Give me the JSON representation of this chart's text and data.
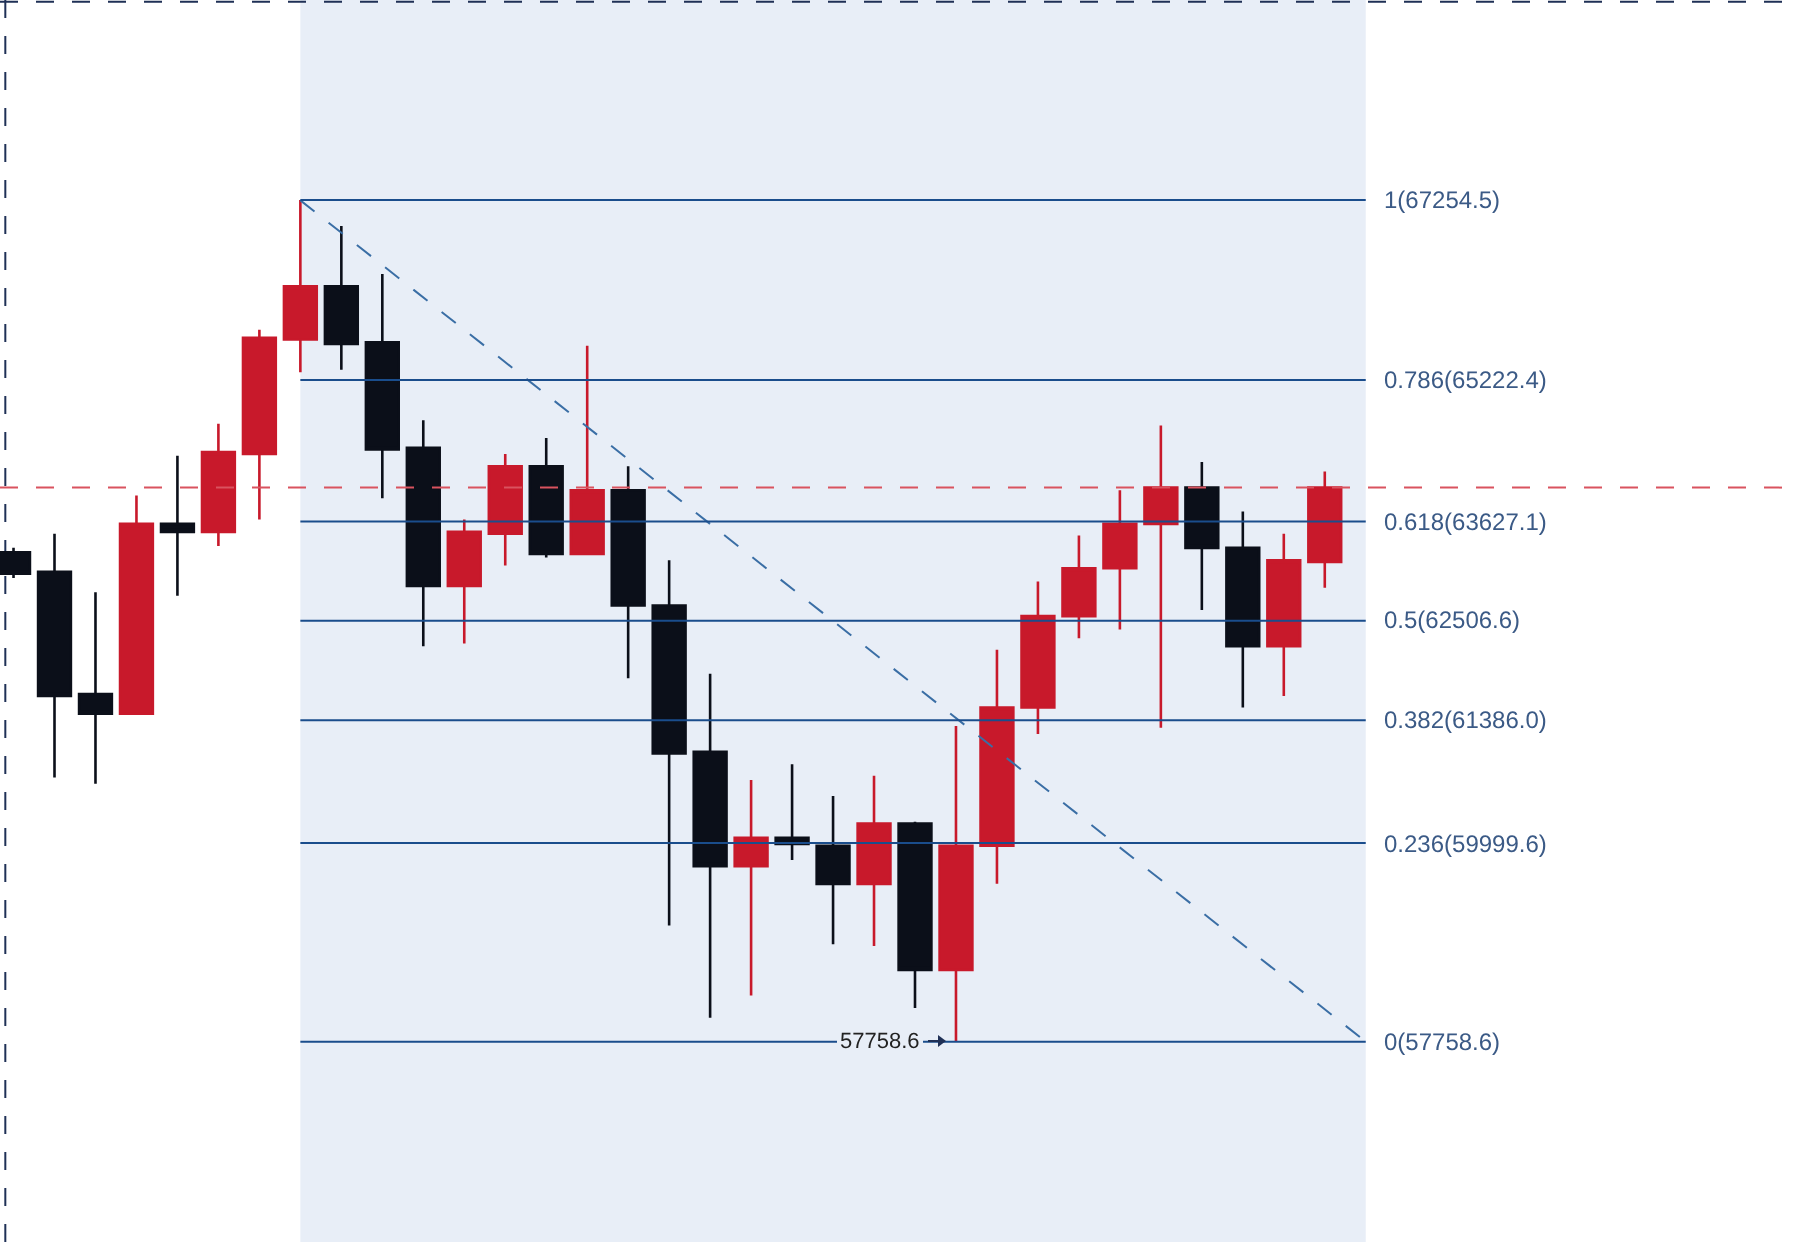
{
  "chart_data": {
    "type": "candlestick",
    "categories": [
      null,
      null,
      null,
      null,
      null,
      null,
      null,
      null,
      null,
      null,
      null,
      null,
      null,
      null,
      null,
      null,
      null,
      null,
      null,
      null,
      null,
      null,
      null,
      null,
      null,
      null,
      null,
      null,
      null,
      null,
      null,
      null,
      null,
      null
    ],
    "ohlc": [
      [
        63280,
        63330,
        62990,
        63040
      ],
      [
        63060,
        63490,
        60740,
        61660
      ],
      [
        61680,
        62830,
        60670,
        61460
      ],
      [
        61460,
        63920,
        61460,
        63600
      ],
      [
        63600,
        64370,
        62790,
        63510
      ],
      [
        63510,
        64730,
        63350,
        64410
      ],
      [
        64390,
        65790,
        63650,
        65700
      ],
      [
        65680,
        67254.5,
        65310,
        66280
      ],
      [
        66280,
        66960,
        65340,
        65630
      ],
      [
        65650,
        66420,
        63890,
        64440
      ],
      [
        64460,
        64770,
        62220,
        62900
      ],
      [
        62900,
        63650,
        62250,
        63510
      ],
      [
        63490,
        64390,
        63130,
        64250
      ],
      [
        64250,
        64570,
        63220,
        63260
      ],
      [
        63260,
        65610,
        63260,
        63980
      ],
      [
        63980,
        64250,
        61860,
        62680
      ],
      [
        62680,
        63190,
        59070,
        61010
      ],
      [
        61030,
        61910,
        58030,
        59740
      ],
      [
        59740,
        60710,
        58280,
        60060
      ],
      [
        60060,
        60890,
        59810,
        59990
      ],
      [
        59970,
        60530,
        58860,
        59540
      ],
      [
        59540,
        60760,
        58840,
        60220
      ],
      [
        60220,
        60240,
        58140,
        58570
      ],
      [
        58570,
        61320,
        57758.6,
        59970
      ],
      [
        59970,
        62180,
        59540,
        61530
      ],
      [
        61530,
        62950,
        61230,
        62560
      ],
      [
        62560,
        63470,
        62310,
        63100
      ],
      [
        63100,
        63980,
        62410,
        63600
      ],
      [
        63600,
        64710,
        61300,
        64010
      ],
      [
        64010,
        64300,
        62630,
        63330
      ],
      [
        63330,
        63740,
        61530,
        62220
      ],
      [
        62220,
        63490,
        61660,
        63190
      ],
      [
        63170,
        64190,
        62880,
        64010
      ],
      null
    ],
    "colors": [
      "#0b0f19",
      "#0b0f19",
      "#0b0f19",
      "#c8192b",
      "#0b0f19",
      "#c8192b",
      "#c8192b",
      "#c8192b",
      "#0b0f19",
      "#0b0f19",
      "#0b0f19",
      "#c8192b",
      "#c8192b",
      "#0b0f19",
      "#c8192b",
      "#0b0f19",
      "#0b0f19",
      "#0b0f19",
      "#c8192b",
      "#0b0f19",
      "#0b0f19",
      "#c8192b",
      "#0b0f19",
      "#c8192b",
      "#c8192b",
      "#c8192b",
      "#c8192b",
      "#c8192b",
      "#c8192b",
      "#0b0f19",
      "#0b0f19",
      "#c8192b",
      "#c8192b",
      null
    ],
    "series": [
      {
        "type": "line",
        "color": "#3a6ea5",
        "line_style": "dashed",
        "values": [
          null,
          null,
          null,
          null,
          null,
          null,
          null,
          67250,
          null,
          null,
          null,
          null,
          null,
          null,
          null,
          null,
          null,
          null,
          null,
          null,
          null,
          null,
          null,
          null,
          null,
          null,
          null,
          null,
          null,
          null,
          null,
          null,
          null,
          57760
        ]
      }
    ],
    "ylim": [
      55500,
      69510
    ],
    "ref_lines": [
      {
        "axis": "y",
        "value": 67254.5,
        "label": "1(67254.5)",
        "color": "#1a4d8c"
      },
      {
        "axis": "y",
        "value": 65222.4,
        "label": "0.786(65222.4)",
        "color": "#1a4d8c"
      },
      {
        "axis": "y",
        "value": 63627.1,
        "label": "0.618(63627.1)",
        "color": "#1a4d8c"
      },
      {
        "axis": "y",
        "value": 62506.6,
        "label": "0.5(62506.6)",
        "color": "#1a4d8c"
      },
      {
        "axis": "y",
        "value": 61386.0,
        "label": "0.382(61386.0)",
        "color": "#1a4d8c"
      },
      {
        "axis": "y",
        "value": 59999.6,
        "label": "0.236(59999.6)",
        "color": "#1a4d8c"
      },
      {
        "axis": "y",
        "value": 57758.6,
        "label": "0(57758.6)",
        "color": "#1a4d8c"
      },
      {
        "axis": "y",
        "value": 64010,
        "color": "#d9535f",
        "line_style": "dashed"
      },
      {
        "axis": "y",
        "value": 69490,
        "color": "#1f3056",
        "line_style": "dashed"
      }
    ],
    "annotations": [
      {
        "text": "57758.6",
        "y": 57758.6
      }
    ],
    "tick_labels": false
  }
}
